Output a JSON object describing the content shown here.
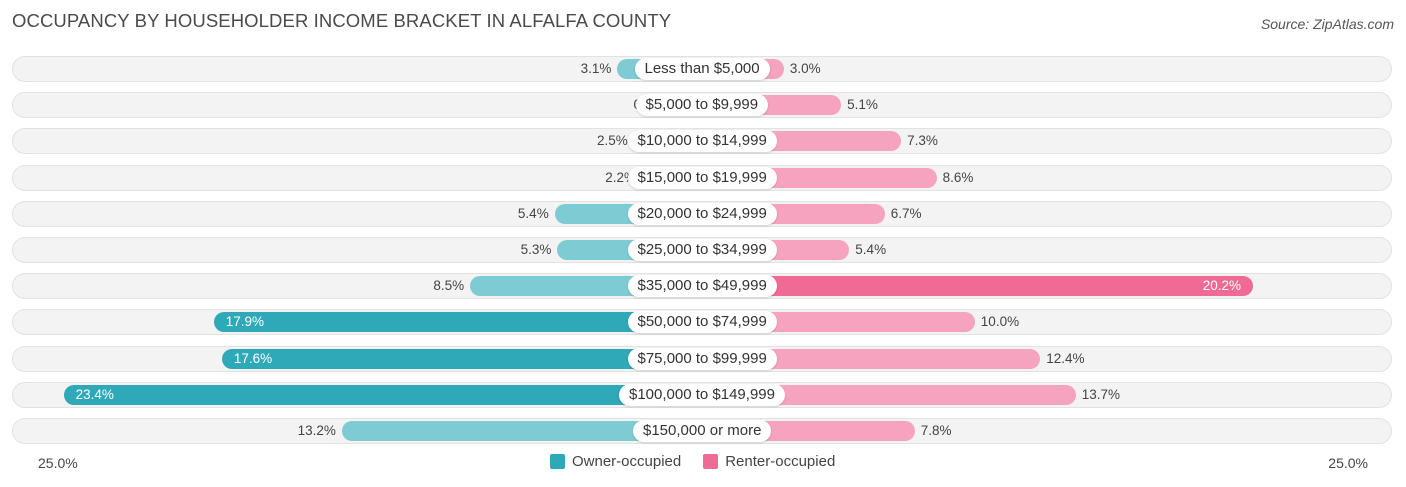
{
  "header": {
    "title": "OCCUPANCY BY HOUSEHOLDER INCOME BRACKET IN ALFALFA COUNTY",
    "source": "Source: ZipAtlas.com"
  },
  "axis": {
    "left_label": "25.0%",
    "right_label": "25.0%"
  },
  "legend": {
    "owner_label": "Owner-occupied",
    "renter_label": "Renter-occupied"
  },
  "colors": {
    "owner": "#7ecbd3",
    "owner_strong": "#2fa8b8",
    "renter": "#f5a3bf",
    "renter_strong": "#f06a96"
  },
  "chart_data": {
    "type": "bar",
    "orientation": "horizontal-diverging",
    "title": "OCCUPANCY BY HOUSEHOLDER INCOME BRACKET IN ALFALFA COUNTY",
    "xlim": [
      -25,
      25
    ],
    "categories": [
      "Less than $5,000",
      "$5,000 to $9,999",
      "$10,000 to $14,999",
      "$15,000 to $19,999",
      "$20,000 to $24,999",
      "$25,000 to $34,999",
      "$35,000 to $49,999",
      "$50,000 to $74,999",
      "$75,000 to $99,999",
      "$100,000 to $149,999",
      "$150,000 or more"
    ],
    "series": [
      {
        "name": "Owner-occupied",
        "values": [
          3.1,
          0.89,
          2.5,
          2.2,
          5.4,
          5.3,
          8.5,
          17.9,
          17.6,
          23.4,
          13.2
        ],
        "labels": [
          "3.1%",
          "0.89%",
          "2.5%",
          "2.2%",
          "5.4%",
          "5.3%",
          "8.5%",
          "17.9%",
          "17.6%",
          "23.4%",
          "13.2%"
        ]
      },
      {
        "name": "Renter-occupied",
        "values": [
          3.0,
          5.1,
          7.3,
          8.6,
          6.7,
          5.4,
          20.2,
          10.0,
          12.4,
          13.7,
          7.8
        ],
        "labels": [
          "3.0%",
          "5.1%",
          "7.3%",
          "8.6%",
          "6.7%",
          "5.4%",
          "20.2%",
          "10.0%",
          "12.4%",
          "13.7%",
          "7.8%"
        ]
      }
    ],
    "legend_position": "bottom-center"
  }
}
